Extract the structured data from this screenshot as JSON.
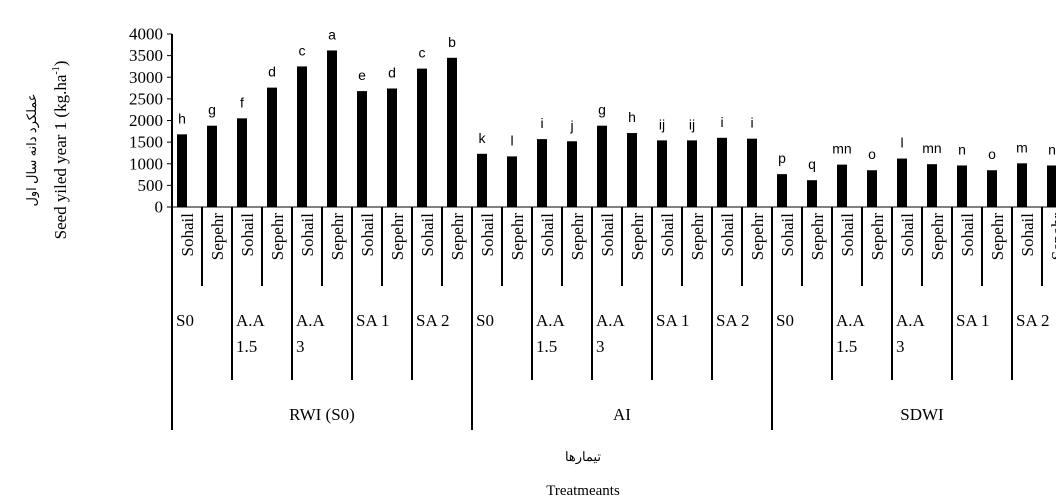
{
  "chart_data": {
    "type": "bar",
    "ylabel_fa": "عملکرد دانه سال اول",
    "ylabel_en": "Seed yiled year 1 (kg.ha",
    "ylabel_sup": "-1",
    "ylabel_tail": ")",
    "xlabel_fa": "تیمارها",
    "xlabel_en": "Treatmeants",
    "ylim": [
      0,
      4000
    ],
    "yticks": [
      "0",
      "500",
      "1000",
      "1500",
      "2000",
      "2500",
      "3000",
      "3500",
      "4000"
    ],
    "groups": [
      {
        "name": "RWI (S0)",
        "subgroups": [
          {
            "name": [
              "S0"
            ],
            "bars": [
              {
                "cultivar": "Sohail",
                "value": 1680,
                "letter": "h"
              },
              {
                "cultivar": "Sepehr",
                "value": 1880,
                "letter": "g"
              }
            ]
          },
          {
            "name": [
              "A.A",
              "1.5"
            ],
            "bars": [
              {
                "cultivar": "Sohail",
                "value": 2050,
                "letter": "f"
              },
              {
                "cultivar": "Sepehr",
                "value": 2760,
                "letter": "d"
              }
            ]
          },
          {
            "name": [
              "A.A",
              "3"
            ],
            "bars": [
              {
                "cultivar": "Sohail",
                "value": 3250,
                "letter": "c"
              },
              {
                "cultivar": "Sepehr",
                "value": 3620,
                "letter": "a"
              }
            ]
          },
          {
            "name": [
              "SA 1"
            ],
            "bars": [
              {
                "cultivar": "Sohail",
                "value": 2680,
                "letter": "e"
              },
              {
                "cultivar": "Sepehr",
                "value": 2740,
                "letter": "d"
              }
            ]
          },
          {
            "name": [
              "SA 2"
            ],
            "bars": [
              {
                "cultivar": "Sohail",
                "value": 3200,
                "letter": "c"
              },
              {
                "cultivar": "Sepehr",
                "value": 3450,
                "letter": "b"
              }
            ]
          }
        ]
      },
      {
        "name": "AI",
        "subgroups": [
          {
            "name": [
              "S0"
            ],
            "bars": [
              {
                "cultivar": "Sohail",
                "value": 1230,
                "letter": "k"
              },
              {
                "cultivar": "Sepehr",
                "value": 1170,
                "letter": "l"
              }
            ]
          },
          {
            "name": [
              "A.A",
              "1.5"
            ],
            "bars": [
              {
                "cultivar": "Sohail",
                "value": 1570,
                "letter": "i"
              },
              {
                "cultivar": "Sepehr",
                "value": 1520,
                "letter": "j"
              }
            ]
          },
          {
            "name": [
              "A.A",
              "3"
            ],
            "bars": [
              {
                "cultivar": "Sohail",
                "value": 1880,
                "letter": "g"
              },
              {
                "cultivar": "Sepehr",
                "value": 1710,
                "letter": "h"
              }
            ]
          },
          {
            "name": [
              "SA 1"
            ],
            "bars": [
              {
                "cultivar": "Sohail",
                "value": 1540,
                "letter": "ij"
              },
              {
                "cultivar": "Sepehr",
                "value": 1540,
                "letter": "ij"
              }
            ]
          },
          {
            "name": [
              "SA 2"
            ],
            "bars": [
              {
                "cultivar": "Sohail",
                "value": 1600,
                "letter": "i"
              },
              {
                "cultivar": "Sepehr",
                "value": 1580,
                "letter": "i"
              }
            ]
          }
        ]
      },
      {
        "name": "SDWI",
        "subgroups": [
          {
            "name": [
              "S0"
            ],
            "bars": [
              {
                "cultivar": "Sohail",
                "value": 760,
                "letter": "p"
              },
              {
                "cultivar": "Sepehr",
                "value": 620,
                "letter": "q"
              }
            ]
          },
          {
            "name": [
              "A.A",
              "1.5"
            ],
            "bars": [
              {
                "cultivar": "Sohail",
                "value": 980,
                "letter": "mn"
              },
              {
                "cultivar": "Sepehr",
                "value": 850,
                "letter": "o"
              }
            ]
          },
          {
            "name": [
              "A.A",
              "3"
            ],
            "bars": [
              {
                "cultivar": "Sohail",
                "value": 1120,
                "letter": "l"
              },
              {
                "cultivar": "Sepehr",
                "value": 990,
                "letter": "mn"
              }
            ]
          },
          {
            "name": [
              "SA 1"
            ],
            "bars": [
              {
                "cultivar": "Sohail",
                "value": 960,
                "letter": "n"
              },
              {
                "cultivar": "Sepehr",
                "value": 850,
                "letter": "o"
              }
            ]
          },
          {
            "name": [
              "SA 2"
            ],
            "bars": [
              {
                "cultivar": "Sohail",
                "value": 1010,
                "letter": "m"
              },
              {
                "cultivar": "Sepehr",
                "value": 960,
                "letter": "n"
              }
            ]
          }
        ]
      }
    ],
    "bar_color": "#000000",
    "grid": false
  }
}
